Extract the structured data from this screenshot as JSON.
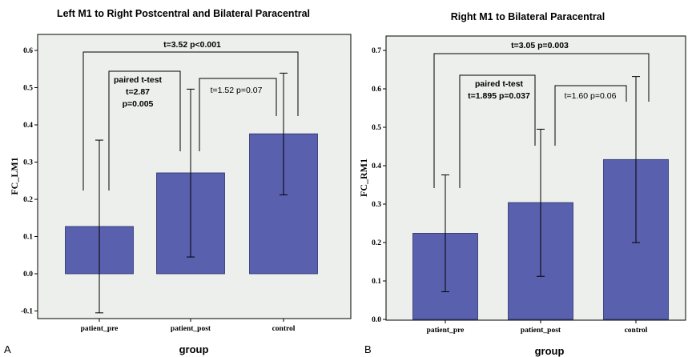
{
  "colors": {
    "bar": "#5960ad",
    "plot_bg": "#ecefec",
    "line": "#000000"
  },
  "chart_data": [
    {
      "type": "bar",
      "panel_label": "A",
      "title": "Left M1 to Right Postcentral and Bilateral Paracentral",
      "xlabel": "group",
      "ylabel": "FC_LM1",
      "categories": [
        "patient_pre",
        "patient_post",
        "control"
      ],
      "values": [
        0.127,
        0.271,
        0.376
      ],
      "error_low": [
        -0.105,
        0.045,
        0.212
      ],
      "error_high": [
        0.359,
        0.496,
        0.539
      ],
      "ylim": [
        -0.12,
        0.65
      ],
      "yticks": [
        "-0.1",
        "0.0",
        "0.1",
        "0.2",
        "0.3",
        "0.4",
        "0.5",
        "0.6"
      ],
      "annotations": [
        {
          "text": "t=3.52 p<0.001",
          "bold": true
        },
        {
          "text": "paired t-test",
          "bold": true
        },
        {
          "text": "t=2.87",
          "bold": true
        },
        {
          "text": "p=0.005",
          "bold": true
        },
        {
          "text": "t=1.52 p=0.07",
          "bold": false
        }
      ]
    },
    {
      "type": "bar",
      "panel_label": "B",
      "title": "Right M1 to Bilateral Paracentral",
      "xlabel": "group",
      "ylabel": "FC_RM1",
      "categories": [
        "patient_pre",
        "patient_post",
        "control"
      ],
      "values": [
        0.224,
        0.304,
        0.416
      ],
      "error_low": [
        0.072,
        0.112,
        0.2
      ],
      "error_high": [
        0.376,
        0.495,
        0.632
      ],
      "ylim": [
        0.0,
        0.72
      ],
      "yticks": [
        "0.0",
        "0.1",
        "0.2",
        "0.3",
        "0.4",
        "0.5",
        "0.6",
        "0.7"
      ],
      "annotations": [
        {
          "text": "t=3.05 p=0.003",
          "bold": true
        },
        {
          "text": "paired t-test",
          "bold": true
        },
        {
          "text": "t=1.895 p=0.037",
          "bold": true
        },
        {
          "text": "t=1.60 p=0.06",
          "bold": false
        }
      ]
    }
  ]
}
